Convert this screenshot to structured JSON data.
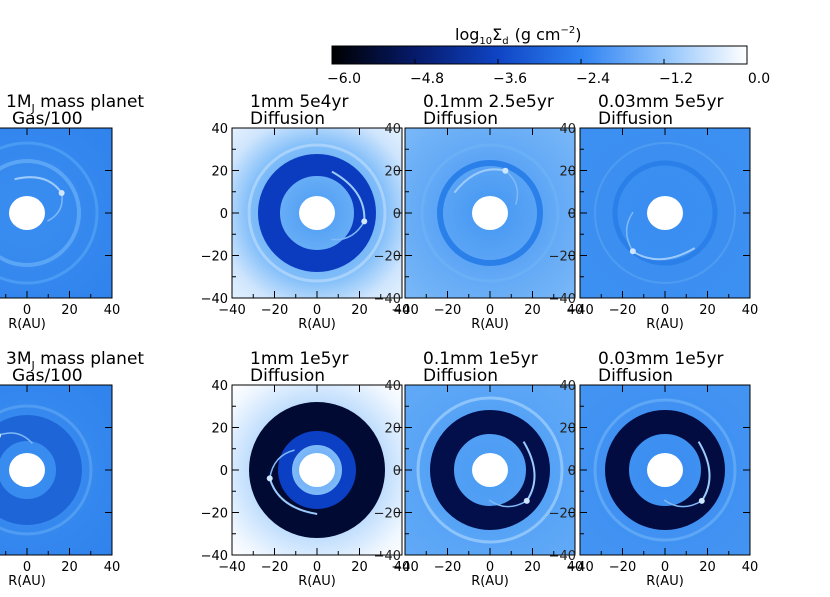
{
  "colorbar": {
    "label": "log",
    "label_sub": "10",
    "label_sigma": "Σ",
    "label_d": "d",
    "label_units": "(g cm",
    "label_exp": "−2",
    "label_close": ")",
    "ticks": [
      "−6.0",
      "−4.8",
      "−3.6",
      "−2.4",
      "−1.2",
      "0.0"
    ],
    "range": [
      -6.0,
      0.0
    ],
    "colors": [
      "#000000",
      "#061a6a",
      "#0f44c4",
      "#2f82f2",
      "#8fc3fb",
      "#ffffff"
    ]
  },
  "chart_data": [
    {
      "type": "heatmap",
      "row": 0,
      "col": 0,
      "title_line1": "1M",
      "title_sub": "J",
      "title_rest": " mass planet",
      "title_line2": "Gas/100",
      "xlabel": "R(AU)",
      "xlim": [
        -40,
        40
      ],
      "ylim": [
        -40,
        40
      ]
    },
    {
      "type": "heatmap",
      "row": 0,
      "col": 1,
      "title_line1": "1mm  5e4yr",
      "title_line2": "Diffusion",
      "xlabel": "R(AU)",
      "xlim": [
        -40,
        40
      ],
      "ylim": [
        -40,
        40
      ]
    },
    {
      "type": "heatmap",
      "row": 0,
      "col": 2,
      "title_line1": "0.1mm 2.5e5yr",
      "title_line2": "Diffusion",
      "xlabel": "R(AU)",
      "xlim": [
        -40,
        40
      ],
      "ylim": [
        -40,
        40
      ]
    },
    {
      "type": "heatmap",
      "row": 0,
      "col": 3,
      "title_line1": "0.03mm   5e5yr",
      "title_line2": "Diffusion",
      "xlabel": "R(AU)",
      "xlim": [
        -40,
        40
      ],
      "ylim": [
        -40,
        40
      ]
    },
    {
      "type": "heatmap",
      "row": 1,
      "col": 0,
      "title_line1": "3M",
      "title_sub": "J",
      "title_rest": " mass planet",
      "title_line2": "Gas/100",
      "xlabel": "R(AU)",
      "xlim": [
        -40,
        40
      ],
      "ylim": [
        -40,
        40
      ]
    },
    {
      "type": "heatmap",
      "row": 1,
      "col": 1,
      "title_line1": "1mm   1e5yr",
      "title_line2": "Diffusion",
      "xlabel": "R(AU)",
      "xlim": [
        -40,
        40
      ],
      "ylim": [
        -40,
        40
      ]
    },
    {
      "type": "heatmap",
      "row": 1,
      "col": 2,
      "title_line1": "0.1mm   1e5yr",
      "title_line2": "Diffusion",
      "xlabel": "R(AU)",
      "xlim": [
        -40,
        40
      ],
      "ylim": [
        -40,
        40
      ]
    },
    {
      "type": "heatmap",
      "row": 1,
      "col": 3,
      "title_line1": "0.03mm   1e5yr",
      "title_line2": "Diffusion",
      "xlabel": "R(AU)",
      "xlim": [
        -40,
        40
      ],
      "ylim": [
        -40,
        40
      ]
    }
  ],
  "axis": {
    "xticks": [
      "−40",
      "−20",
      "0",
      "20",
      "40"
    ],
    "yticks": [
      "40",
      "20",
      "0",
      "−20",
      "−40"
    ]
  }
}
